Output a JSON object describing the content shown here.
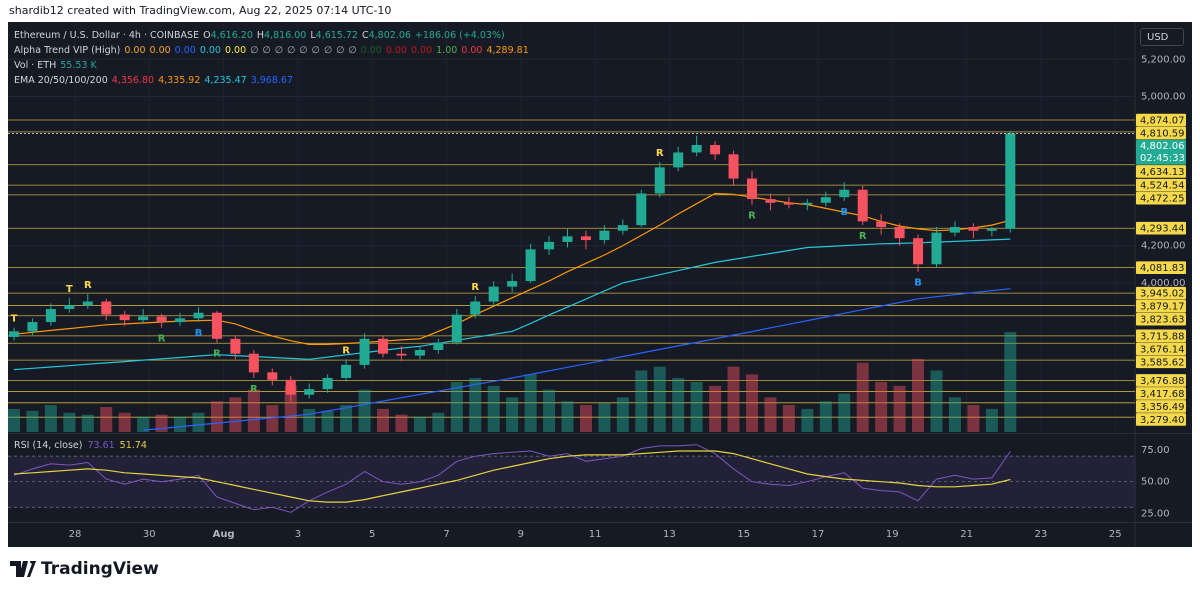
{
  "header": "shardib12 created with TradingView.com, Aug 22, 2025 07:14 UTC-10",
  "footer": "TradingView",
  "currency": "USD",
  "legend": {
    "symbol": "Ethereum / U.S. Dollar · 4h · COINBASE",
    "ohlc": [
      {
        "key": "O",
        "value": "4,616.20"
      },
      {
        "key": "H",
        "value": "4,816.00"
      },
      {
        "key": "L",
        "value": "4,615.72"
      },
      {
        "key": "C",
        "value": "4,802.06"
      }
    ],
    "change": "+186.06 (+4.03%)",
    "indicators": [
      {
        "name": "Alpha Trend VIP (High)",
        "values": [
          {
            "text": "0.00",
            "color": "#f5a623"
          },
          {
            "text": "0.00",
            "color": "#f5a623"
          },
          {
            "text": "0.00",
            "color": "#2962ff"
          },
          {
            "text": "0.00",
            "color": "#26c6da"
          },
          {
            "text": "0.00",
            "color": "#ffeb3b"
          },
          {
            "text": "∅",
            "color": "#b2b5be"
          },
          {
            "text": "∅",
            "color": "#b2b5be"
          },
          {
            "text": "∅",
            "color": "#b2b5be"
          },
          {
            "text": "∅",
            "color": "#b2b5be"
          },
          {
            "text": "∅",
            "color": "#b2b5be"
          },
          {
            "text": "∅",
            "color": "#b2b5be"
          },
          {
            "text": "∅",
            "color": "#b2b5be"
          },
          {
            "text": "∅",
            "color": "#b2b5be"
          },
          {
            "text": "∅",
            "color": "#b2b5be"
          },
          {
            "text": "0.00",
            "color": "#1b5e20"
          },
          {
            "text": "0.00",
            "color": "#b71c1c"
          },
          {
            "text": "0.00",
            "color": "#b71c1c"
          },
          {
            "text": "1.00",
            "color": "#4caf50"
          },
          {
            "text": "0.00",
            "color": "#f23645"
          },
          {
            "text": "4,289.81",
            "color": "#ff9800"
          }
        ]
      },
      {
        "name": "Vol · ETH",
        "values": [
          {
            "text": "55.53 K",
            "color": "#26a69a"
          }
        ]
      },
      {
        "name": "EMA 20/50/100/200",
        "values": [
          {
            "text": "4,356.80",
            "color": "#f23645"
          },
          {
            "text": "4,335.92",
            "color": "#ff9800"
          },
          {
            "text": "4,235.47",
            "color": "#26c6da"
          },
          {
            "text": "3,968.67",
            "color": "#2962ff"
          }
        ]
      }
    ]
  },
  "chart_data": {
    "type": "candlestick",
    "up_color": "#22ab94",
    "down_color": "#f7525f",
    "ylim": [
      3200,
      5400
    ],
    "yticks": [
      {
        "value": 5200,
        "label": "5,200.00"
      },
      {
        "value": 5000,
        "label": "5,000.00"
      },
      {
        "value": 4200,
        "label": "4,200.00"
      },
      {
        "value": 4000,
        "label": "4,000.00"
      }
    ],
    "grid": true,
    "x_labels": [
      "28",
      "30",
      "Aug",
      "3",
      "5",
      "7",
      "9",
      "11",
      "13",
      "15",
      "17",
      "19",
      "21",
      "23",
      "25"
    ],
    "ohlc": [
      [
        3710,
        3760,
        3690,
        3740
      ],
      [
        3740,
        3810,
        3720,
        3790
      ],
      [
        3790,
        3890,
        3770,
        3860
      ],
      [
        3860,
        3920,
        3840,
        3880
      ],
      [
        3880,
        3940,
        3860,
        3900
      ],
      [
        3900,
        3915,
        3800,
        3830
      ],
      [
        3830,
        3850,
        3770,
        3800
      ],
      [
        3800,
        3860,
        3780,
        3820
      ],
      [
        3820,
        3835,
        3760,
        3790
      ],
      [
        3790,
        3840,
        3770,
        3810
      ],
      [
        3810,
        3870,
        3790,
        3840
      ],
      [
        3840,
        3850,
        3680,
        3700
      ],
      [
        3700,
        3720,
        3590,
        3620
      ],
      [
        3620,
        3640,
        3490,
        3520
      ],
      [
        3520,
        3540,
        3450,
        3480
      ],
      [
        3480,
        3500,
        3360,
        3400
      ],
      [
        3400,
        3460,
        3380,
        3430
      ],
      [
        3430,
        3510,
        3410,
        3490
      ],
      [
        3490,
        3590,
        3470,
        3560
      ],
      [
        3560,
        3730,
        3540,
        3700
      ],
      [
        3700,
        3720,
        3600,
        3620
      ],
      [
        3620,
        3660,
        3580,
        3610
      ],
      [
        3610,
        3660,
        3590,
        3640
      ],
      [
        3640,
        3700,
        3620,
        3680
      ],
      [
        3680,
        3860,
        3670,
        3830
      ],
      [
        3830,
        3930,
        3810,
        3900
      ],
      [
        3900,
        4010,
        3880,
        3980
      ],
      [
        3980,
        4050,
        3950,
        4010
      ],
      [
        4010,
        4210,
        4000,
        4180
      ],
      [
        4180,
        4250,
        4150,
        4220
      ],
      [
        4220,
        4290,
        4190,
        4250
      ],
      [
        4250,
        4280,
        4180,
        4230
      ],
      [
        4230,
        4310,
        4210,
        4280
      ],
      [
        4280,
        4340,
        4260,
        4310
      ],
      [
        4310,
        4500,
        4300,
        4480
      ],
      [
        4480,
        4650,
        4460,
        4620
      ],
      [
        4620,
        4730,
        4600,
        4700
      ],
      [
        4700,
        4790,
        4680,
        4740
      ],
      [
        4740,
        4760,
        4660,
        4690
      ],
      [
        4690,
        4710,
        4520,
        4560
      ],
      [
        4560,
        4600,
        4420,
        4450
      ],
      [
        4450,
        4480,
        4390,
        4430
      ],
      [
        4430,
        4460,
        4400,
        4420
      ],
      [
        4420,
        4450,
        4390,
        4430
      ],
      [
        4430,
        4490,
        4410,
        4460
      ],
      [
        4460,
        4540,
        4440,
        4500
      ],
      [
        4500,
        4520,
        4310,
        4330
      ],
      [
        4330,
        4370,
        4260,
        4300
      ],
      [
        4300,
        4320,
        4200,
        4240
      ],
      [
        4240,
        4260,
        4060,
        4100
      ],
      [
        4100,
        4300,
        4080,
        4270
      ],
      [
        4270,
        4330,
        4250,
        4300
      ],
      [
        4300,
        4320,
        4240,
        4280
      ],
      [
        4280,
        4300,
        4250,
        4290
      ],
      [
        4290,
        4816,
        4270,
        4802
      ]
    ],
    "volume": [
      60,
      55,
      70,
      50,
      45,
      65,
      50,
      40,
      45,
      40,
      50,
      80,
      90,
      110,
      70,
      120,
      60,
      55,
      70,
      110,
      60,
      45,
      40,
      50,
      130,
      140,
      120,
      90,
      150,
      110,
      80,
      70,
      75,
      90,
      160,
      170,
      140,
      130,
      120,
      170,
      150,
      90,
      70,
      60,
      80,
      100,
      180,
      130,
      120,
      190,
      160,
      90,
      70,
      60,
      260
    ],
    "ema_series": [
      {
        "color": "#ff9800",
        "values": [
          3725,
          3735,
          3745,
          3755,
          3765,
          3775,
          3780,
          3785,
          3790,
          3795,
          3798,
          3800,
          3780,
          3745,
          3715,
          3690,
          3670,
          3670,
          3675,
          3680,
          3688,
          3694,
          3700,
          3740,
          3780,
          3830,
          3875,
          3920,
          3965,
          4010,
          4060,
          4105,
          4150,
          4200,
          4255,
          4310,
          4370,
          4425,
          4480,
          4475,
          4460,
          4445,
          4430,
          4420,
          4400,
          4380,
          4360,
          4330,
          4305,
          4290,
          4280,
          4285,
          4295,
          4310,
          4336
        ]
      },
      {
        "color": "#26c6da",
        "values": [
          3535,
          3542,
          3549,
          3556,
          3564,
          3571,
          3578,
          3586,
          3593,
          3600,
          3608,
          3615,
          3610,
          3605,
          3600,
          3595,
          3590,
          3602,
          3614,
          3626,
          3638,
          3650,
          3660,
          3676,
          3692,
          3708,
          3724,
          3740,
          3783,
          3827,
          3870,
          3913,
          3957,
          4000,
          4022,
          4044,
          4066,
          4088,
          4110,
          4126,
          4142,
          4158,
          4174,
          4190,
          4195,
          4200,
          4205,
          4210,
          4212,
          4215,
          4219,
          4223,
          4227,
          4231,
          4235
        ]
      },
      {
        "color": "#2962ff",
        "values": [
          null,
          null,
          null,
          null,
          null,
          null,
          null,
          3210,
          3219,
          3229,
          3238,
          3248,
          3257,
          3267,
          3276,
          3286,
          3295,
          3313,
          3330,
          3348,
          3366,
          3384,
          3402,
          3419,
          3437,
          3455,
          3472,
          3490,
          3509,
          3528,
          3547,
          3566,
          3585,
          3605,
          3624,
          3643,
          3662,
          3681,
          3700,
          3720,
          3739,
          3759,
          3778,
          3798,
          3817,
          3837,
          3856,
          3876,
          3895,
          3915,
          3926,
          3937,
          3948,
          3958,
          3969
        ]
      }
    ],
    "levels": [
      {
        "value": 4874.07,
        "label": "4,874.07"
      },
      {
        "value": 4810.59,
        "label": "4,810.59"
      },
      {
        "value": 4634.13,
        "label": "4,634.13"
      },
      {
        "value": 4524.54,
        "label": "4,524.54"
      },
      {
        "value": 4472.25,
        "label": "4,472.25"
      },
      {
        "value": 4293.44,
        "label": "4,293.44"
      },
      {
        "value": 4081.83,
        "label": "4,081.83"
      },
      {
        "value": 3945.02,
        "label": "3,945.02"
      },
      {
        "value": 3879.17,
        "label": "3,879.17"
      },
      {
        "value": 3823.63,
        "label": "3,823.63"
      },
      {
        "value": 3715.88,
        "label": "3,715.88"
      },
      {
        "value": 3676.14,
        "label": "3,676.14"
      },
      {
        "value": 3585.62,
        "label": "3,585.62"
      },
      {
        "value": 3476.88,
        "label": "3,476.88"
      },
      {
        "value": 3417.68,
        "label": "3,417.68"
      },
      {
        "value": 3356.49,
        "label": "3,356.49"
      },
      {
        "value": 3279.4,
        "label": "3,279.40"
      }
    ],
    "level_color": "#e8c547",
    "last": {
      "value": 4802.06,
      "label": "4,802.06",
      "countdown": "02:45:33"
    },
    "signals": [
      {
        "text": "T",
        "color": "#ffd54a",
        "at": 0,
        "side": "above"
      },
      {
        "text": "T",
        "color": "#ffd54a",
        "at": 3,
        "side": "above"
      },
      {
        "text": "R",
        "color": "#ffd54a",
        "at": 4,
        "side": "above"
      },
      {
        "text": "R",
        "color": "#4caf50",
        "at": 8,
        "side": "below"
      },
      {
        "text": "B",
        "color": "#2196f3",
        "at": 10,
        "side": "below"
      },
      {
        "text": "R",
        "color": "#4caf50",
        "at": 11,
        "side": "below"
      },
      {
        "text": "R",
        "color": "#4caf50",
        "at": 13,
        "side": "below"
      },
      {
        "text": "R",
        "color": "#ffd54a",
        "at": 18,
        "side": "above"
      },
      {
        "text": "R",
        "color": "#ffd54a",
        "at": 25,
        "side": "above"
      },
      {
        "text": "R",
        "color": "#ffd54a",
        "at": 35,
        "side": "above"
      },
      {
        "text": "R",
        "color": "#4caf50",
        "at": 40,
        "side": "below"
      },
      {
        "text": "B",
        "color": "#2196f3",
        "at": 45,
        "side": "below"
      },
      {
        "text": "R",
        "color": "#4caf50",
        "at": 46,
        "side": "below"
      },
      {
        "text": "B",
        "color": "#2196f3",
        "at": 49,
        "side": "below"
      }
    ],
    "rsi": {
      "title": "RSI (14, close)",
      "value_label": "73.61",
      "ma_label": "51.74",
      "color": "#7e57c2",
      "ma_color": "#e6d23f",
      "ylim": [
        20,
        85
      ],
      "yticks": [
        {
          "value": 75,
          "label": "75.00"
        },
        {
          "value": 50,
          "label": "50.00"
        },
        {
          "value": 25,
          "label": "25.00"
        }
      ],
      "levels": [
        70,
        50,
        30
      ],
      "values": [
        55,
        60,
        64,
        63,
        65,
        52,
        48,
        52,
        50,
        52,
        55,
        38,
        33,
        28,
        30,
        26,
        35,
        42,
        48,
        58,
        50,
        48,
        50,
        55,
        66,
        70,
        72,
        73,
        74,
        70,
        72,
        66,
        68,
        70,
        76,
        78,
        78,
        79,
        72,
        60,
        50,
        48,
        47,
        50,
        54,
        57,
        45,
        43,
        42,
        35,
        52,
        55,
        52,
        53,
        73.61
      ],
      "ma": [
        56,
        57,
        58,
        59,
        60,
        59,
        57,
        56,
        55,
        54,
        53,
        50,
        47,
        44,
        41,
        38,
        35,
        34,
        34,
        36,
        39,
        42,
        45,
        48,
        51,
        55,
        59,
        62,
        65,
        68,
        70,
        71,
        71,
        71,
        72,
        73,
        74,
        74,
        74,
        72,
        68,
        64,
        60,
        56,
        54,
        52,
        51,
        50,
        49,
        47,
        46,
        46,
        47,
        48,
        51.74
      ]
    }
  }
}
